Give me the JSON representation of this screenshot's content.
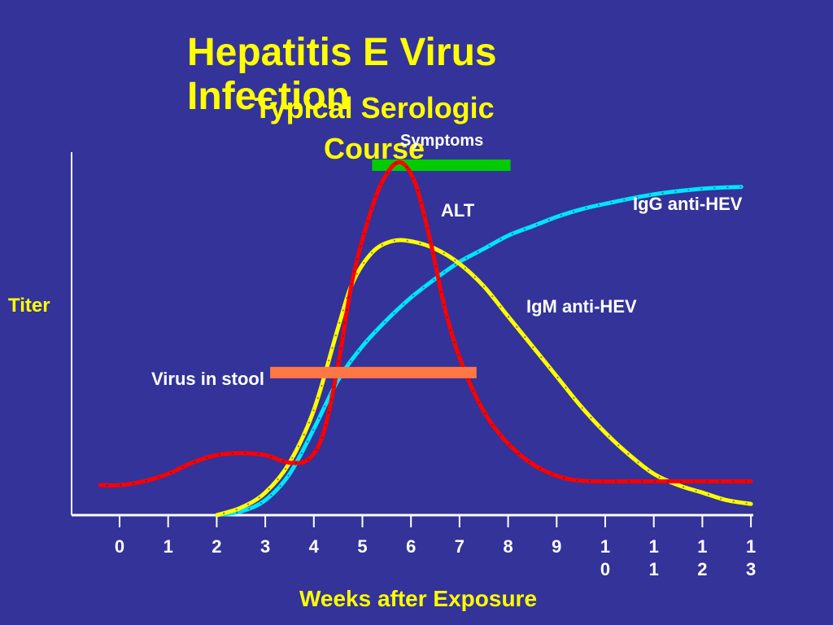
{
  "slide": {
    "title": "Hepatitis E Virus Infection",
    "subtitle": "Typical Serologic Course"
  },
  "chart_data": {
    "type": "line",
    "xlabel": "Weeks after Exposure",
    "ylabel": "Titer",
    "xlim": [
      -0.4,
      13
    ],
    "x_ticks": [
      0,
      1,
      2,
      3,
      4,
      5,
      6,
      7,
      8,
      9,
      10,
      11,
      12,
      13
    ],
    "x_tick_labels": [
      [
        "0"
      ],
      [
        "1"
      ],
      [
        "2"
      ],
      [
        "3"
      ],
      [
        "4"
      ],
      [
        "5"
      ],
      [
        "6"
      ],
      [
        "7"
      ],
      [
        "8"
      ],
      [
        "9"
      ],
      [
        "1",
        "0"
      ],
      [
        "1",
        "1"
      ],
      [
        "1",
        "2"
      ],
      [
        "1",
        "3"
      ]
    ],
    "ylim": [
      0,
      100
    ],
    "series": [
      {
        "name": "ALT",
        "color": "#ff0000",
        "points": [
          [
            -0.4,
            8
          ],
          [
            0,
            8
          ],
          [
            0.5,
            9
          ],
          [
            1,
            11
          ],
          [
            1.5,
            14
          ],
          [
            2,
            16
          ],
          [
            2.5,
            16.5
          ],
          [
            3,
            16
          ],
          [
            3.5,
            14
          ],
          [
            3.9,
            15
          ],
          [
            4.2,
            22
          ],
          [
            4.5,
            40
          ],
          [
            4.8,
            63
          ],
          [
            5.2,
            82
          ],
          [
            5.5,
            91
          ],
          [
            5.8,
            94
          ],
          [
            6.1,
            88
          ],
          [
            6.4,
            73
          ],
          [
            6.7,
            55
          ],
          [
            7,
            42
          ],
          [
            7.4,
            30
          ],
          [
            7.8,
            22
          ],
          [
            8.3,
            15.5
          ],
          [
            8.8,
            11.5
          ],
          [
            9.3,
            9.5
          ],
          [
            9.8,
            9
          ],
          [
            10.5,
            9
          ],
          [
            11.5,
            9
          ],
          [
            12.5,
            9
          ],
          [
            13,
            9
          ]
        ]
      },
      {
        "name": "IgM anti-HEV",
        "color": "#ffff00",
        "points": [
          [
            2,
            0
          ],
          [
            2.5,
            2
          ],
          [
            3,
            6
          ],
          [
            3.5,
            14
          ],
          [
            4,
            28
          ],
          [
            4.5,
            50
          ],
          [
            4.8,
            62
          ],
          [
            5.2,
            70
          ],
          [
            5.6,
            73
          ],
          [
            6,
            73
          ],
          [
            6.5,
            71
          ],
          [
            7,
            67
          ],
          [
            7.5,
            61
          ],
          [
            8,
            53
          ],
          [
            8.5,
            45
          ],
          [
            9,
            37
          ],
          [
            9.5,
            29
          ],
          [
            10,
            22
          ],
          [
            10.5,
            16
          ],
          [
            11,
            11
          ],
          [
            11.5,
            8
          ],
          [
            12,
            6
          ],
          [
            12.5,
            4
          ],
          [
            13,
            3
          ]
        ]
      },
      {
        "name": "IgG anti-HEV",
        "color": "#00e5ff",
        "points": [
          [
            2,
            0
          ],
          [
            2.5,
            1
          ],
          [
            3,
            4
          ],
          [
            3.5,
            11
          ],
          [
            4,
            23
          ],
          [
            4.5,
            36
          ],
          [
            5,
            45
          ],
          [
            5.5,
            52
          ],
          [
            6,
            58
          ],
          [
            6.5,
            63
          ],
          [
            7,
            67.5
          ],
          [
            7.5,
            71
          ],
          [
            8,
            74.5
          ],
          [
            8.5,
            77
          ],
          [
            9,
            79.5
          ],
          [
            9.5,
            81.5
          ],
          [
            10,
            83
          ],
          [
            11,
            85.5
          ],
          [
            12,
            87
          ],
          [
            12.8,
            87.5
          ]
        ]
      }
    ],
    "bars": [
      {
        "label": "Virus in stool",
        "color": "#ff7744",
        "x_start": 3.1,
        "x_end": 7.35,
        "y": 38
      }
    ],
    "annotations": [
      {
        "text": "Symptoms",
        "color": "#00cc00",
        "x_start": 5.2,
        "x_end": 8.05
      }
    ],
    "series_labels": {
      "ALT": "ALT",
      "IgM": "IgM anti-HEV",
      "IgG": "IgG anti-HEV"
    }
  }
}
